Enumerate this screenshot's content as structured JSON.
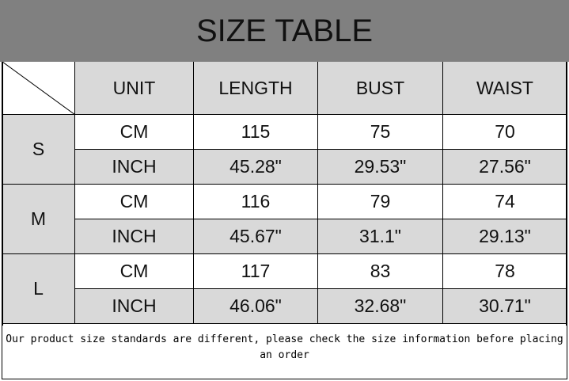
{
  "title": "SIZE TABLE",
  "headers": [
    "UNIT",
    "LENGTH",
    "BUST",
    "WAIST"
  ],
  "sizes": [
    {
      "size": "S",
      "rows": [
        [
          "CM",
          "115",
          "75",
          "70"
        ],
        [
          "INCH",
          "45.28\"",
          "29.53\"",
          "27.56\""
        ]
      ]
    },
    {
      "size": "M",
      "rows": [
        [
          "CM",
          "116",
          "79",
          "74"
        ],
        [
          "INCH",
          "45.67\"",
          "31.1\"",
          "29.13\""
        ]
      ]
    },
    {
      "size": "L",
      "rows": [
        [
          "CM",
          "117",
          "83",
          "78"
        ],
        [
          "INCH",
          "46.06\"",
          "32.68\"",
          "30.71\""
        ]
      ]
    }
  ],
  "note": "Our product size standards are different, please check the size information before placing an order",
  "colors": {
    "header_band": "#808080",
    "cell_gray": "#d9d9d9"
  }
}
